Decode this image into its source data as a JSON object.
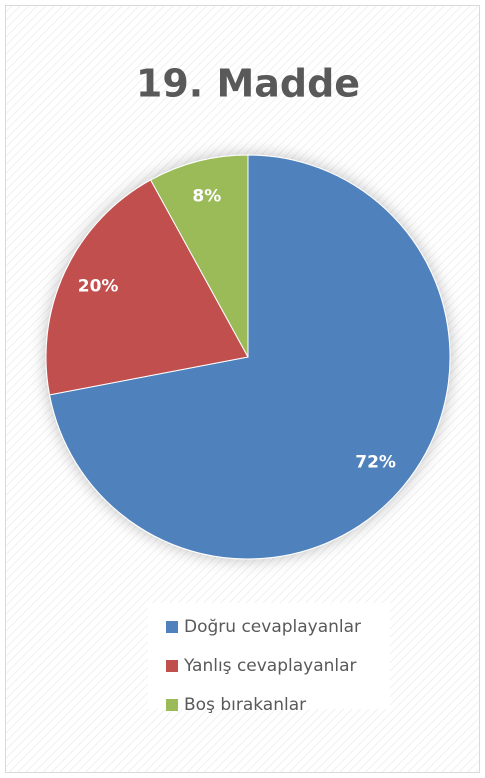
{
  "chart_data": {
    "type": "pie",
    "title": "19. Madde",
    "categories": [
      "Doğru cevaplayanlar",
      "Yanlış cevaplayanlar",
      "Boş bırakanlar"
    ],
    "values": [
      72,
      20,
      8
    ],
    "value_labels": [
      "72%",
      "20%",
      "8%"
    ],
    "colors": [
      "#4f81bd",
      "#c0504d",
      "#9bbb59"
    ],
    "legend": "bottom"
  }
}
